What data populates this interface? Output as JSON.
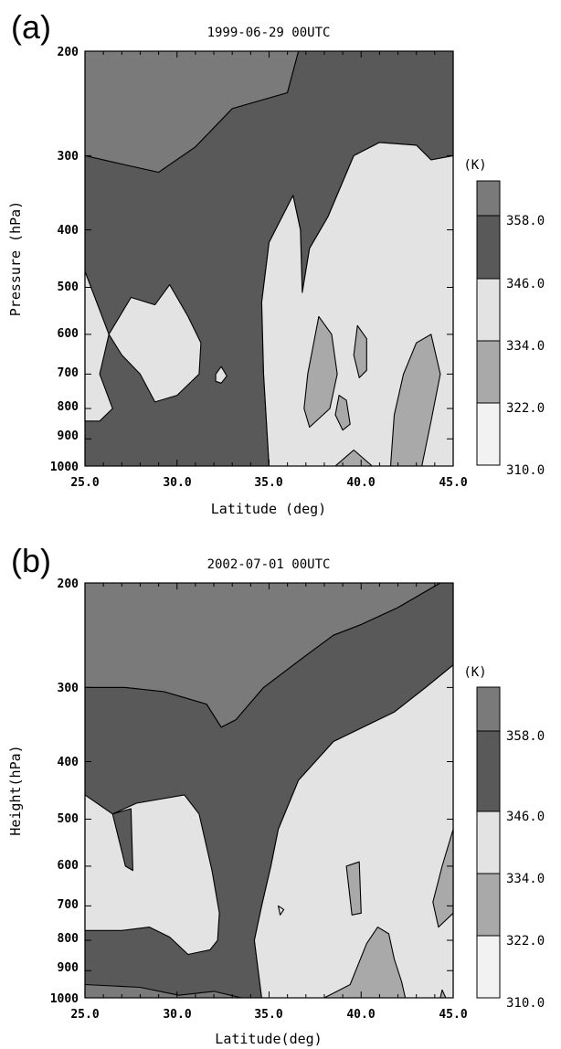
{
  "panels": [
    {
      "panel_label": "(a)",
      "title": "1999-06-29 00UTC",
      "xlabel": "Latitude (deg)",
      "ylabel": "Pressure (hPa)",
      "colorbar_unit": "(K)"
    },
    {
      "panel_label": "(b)",
      "title": "2002-07-01 00UTC",
      "xlabel": "Latitude(deg)",
      "ylabel": "Height(hPa)",
      "colorbar_unit": "(K)"
    }
  ],
  "colors": {
    "lt310": "#f2f2f2",
    "b322": "#a9a9a9",
    "b334": "#e3e3e3",
    "b346": "#595959",
    "gt358": "#7a7a7a"
  },
  "chart_data": [
    {
      "type": "heatmap",
      "title": "1999-06-29 00UTC",
      "xlabel": "Latitude (deg)",
      "ylabel": "Pressure (hPa)",
      "xlim": [
        25.0,
        45.0
      ],
      "ylim": [
        1000,
        200
      ],
      "x_ticks": [
        "25.0",
        "30.0",
        "35.0",
        "40.0",
        "45.0"
      ],
      "y_ticks": [
        "200",
        "300",
        "400",
        "500",
        "600",
        "700",
        "800",
        "900",
        "1000"
      ],
      "colorbar": {
        "unit": "(K)",
        "levels": [
          "310.0",
          "322.0",
          "334.0",
          "346.0",
          "358.0"
        ]
      },
      "regions": [
        {
          "level": "gt358",
          "points": [
            [
              25,
              200
            ],
            [
              36.6,
              200
            ],
            [
              36,
              235
            ],
            [
              33,
              250
            ],
            [
              31,
              290
            ],
            [
              29,
              320
            ],
            [
              27,
              310
            ],
            [
              25,
              300
            ]
          ]
        },
        {
          "level": "b346",
          "points": [
            [
              36.6,
              200
            ],
            [
              45,
              200
            ],
            [
              45,
              300
            ],
            [
              43.8,
              305
            ],
            [
              43,
              288
            ],
            [
              41,
              285
            ],
            [
              39.6,
              300
            ],
            [
              38.2,
              380
            ],
            [
              37.2,
              430
            ],
            [
              36.8,
              510
            ],
            [
              36.7,
              400
            ],
            [
              36.3,
              350
            ],
            [
              35,
              420
            ],
            [
              34.6,
              530
            ],
            [
              34.7,
              700
            ],
            [
              35,
              1000
            ],
            [
              25,
              1000
            ],
            [
              25,
              300
            ],
            [
              27,
              310
            ],
            [
              29,
              320
            ],
            [
              31,
              290
            ],
            [
              33,
              250
            ],
            [
              36,
              235
            ]
          ]
        },
        {
          "level": "b334",
          "points": [
            [
              45,
              300
            ],
            [
              45,
              1000
            ],
            [
              35,
              1000
            ],
            [
              34.7,
              700
            ],
            [
              34.6,
              530
            ],
            [
              35,
              420
            ],
            [
              36.3,
              350
            ],
            [
              36.7,
              400
            ],
            [
              36.8,
              510
            ],
            [
              37.2,
              430
            ],
            [
              38.2,
              380
            ],
            [
              39.6,
              300
            ],
            [
              41,
              285
            ],
            [
              43,
              288
            ],
            [
              43.8,
              305
            ]
          ]
        },
        {
          "level": "b334",
          "points": [
            [
              25,
              470
            ],
            [
              26.3,
              600
            ],
            [
              25.8,
              700
            ],
            [
              26.5,
              800
            ],
            [
              25.8,
              840
            ],
            [
              25,
              840
            ]
          ]
        },
        {
          "level": "b334",
          "points": [
            [
              26.3,
              600
            ],
            [
              27.5,
              520
            ],
            [
              28.8,
              535
            ],
            [
              29.6,
              495
            ],
            [
              30.6,
              560
            ],
            [
              31.3,
              620
            ],
            [
              31.2,
              700
            ],
            [
              30,
              760
            ],
            [
              28.8,
              780
            ],
            [
              28,
              700
            ],
            [
              27,
              650
            ]
          ]
        },
        {
          "level": "b334",
          "points": [
            [
              32.1,
              700
            ],
            [
              32.4,
              680
            ],
            [
              32.7,
              705
            ],
            [
              32.4,
              725
            ],
            [
              32.1,
              720
            ]
          ]
        },
        {
          "level": "b322",
          "points": [
            [
              37.7,
              560
            ],
            [
              38.4,
              600
            ],
            [
              38.7,
              700
            ],
            [
              38.3,
              800
            ],
            [
              37.2,
              860
            ],
            [
              36.9,
              800
            ],
            [
              37.1,
              700
            ]
          ]
        },
        {
          "level": "b322",
          "points": [
            [
              39.8,
              580
            ],
            [
              40.3,
              610
            ],
            [
              40.3,
              690
            ],
            [
              39.9,
              710
            ],
            [
              39.6,
              650
            ]
          ]
        },
        {
          "level": "b322",
          "points": [
            [
              38.8,
              760
            ],
            [
              39.2,
              775
            ],
            [
              39.4,
              850
            ],
            [
              39,
              870
            ],
            [
              38.6,
              820
            ]
          ]
        },
        {
          "level": "b322",
          "points": [
            [
              38.6,
              1000
            ],
            [
              39.6,
              940
            ],
            [
              40.6,
              1000
            ]
          ]
        },
        {
          "level": "b322",
          "points": [
            [
              41.6,
              1000
            ],
            [
              41.8,
              820
            ],
            [
              42.3,
              700
            ],
            [
              43,
              620
            ],
            [
              43.8,
              600
            ],
            [
              44.3,
              700
            ],
            [
              43.8,
              840
            ],
            [
              43.3,
              1000
            ]
          ]
        },
        {
          "level": "b346",
          "points": [
            [
              45,
              540
            ],
            [
              45,
              1000
            ]
          ]
        }
      ]
    },
    {
      "type": "heatmap",
      "title": "2002-07-01 00UTC",
      "xlabel": "Latitude(deg)",
      "ylabel": "Height(hPa)",
      "xlim": [
        25.0,
        45.0
      ],
      "ylim": [
        1000,
        200
      ],
      "x_ticks": [
        "25.0",
        "30.0",
        "35.0",
        "40.0",
        "45.0"
      ],
      "y_ticks": [
        "200",
        "300",
        "400",
        "500",
        "600",
        "700",
        "800",
        "900",
        "1000"
      ],
      "colorbar": {
        "unit": "(K)",
        "levels": [
          "310.0",
          "322.0",
          "334.0",
          "346.0",
          "358.0"
        ]
      },
      "regions": [
        {
          "level": "gt358",
          "points": [
            [
              25,
              200
            ],
            [
              44.3,
              200
            ],
            [
              42,
              220
            ],
            [
              40,
              235
            ],
            [
              38.5,
              245
            ],
            [
              37,
              265
            ],
            [
              34.7,
              300
            ],
            [
              33.2,
              340
            ],
            [
              32.4,
              350
            ],
            [
              31.6,
              320
            ],
            [
              29.3,
              305
            ],
            [
              27.2,
              300
            ],
            [
              25.5,
              300
            ],
            [
              25,
              300
            ]
          ]
        },
        {
          "level": "b346",
          "points": [
            [
              44.3,
              200
            ],
            [
              45,
              200
            ],
            [
              45,
              275
            ],
            [
              43.5,
              300
            ],
            [
              41.8,
              330
            ],
            [
              38.5,
              370
            ],
            [
              36.6,
              430
            ],
            [
              35.5,
              520
            ],
            [
              35.1,
              600
            ],
            [
              34.6,
              700
            ],
            [
              34.2,
              800
            ],
            [
              34.6,
              1000
            ],
            [
              25,
              1000
            ],
            [
              25,
              300
            ],
            [
              25.5,
              300
            ],
            [
              27.2,
              300
            ],
            [
              29.3,
              305
            ],
            [
              31.6,
              320
            ],
            [
              32.4,
              350
            ],
            [
              33.2,
              340
            ],
            [
              34.7,
              300
            ],
            [
              37,
              265
            ],
            [
              38.5,
              245
            ],
            [
              40,
              235
            ],
            [
              42,
              220
            ]
          ]
        },
        {
          "level": "b334",
          "points": [
            [
              45,
              275
            ],
            [
              45,
              1000
            ],
            [
              34.6,
              1000
            ],
            [
              34.2,
              800
            ],
            [
              34.6,
              700
            ],
            [
              35.1,
              600
            ],
            [
              35.5,
              520
            ],
            [
              36.6,
              430
            ],
            [
              38.5,
              370
            ],
            [
              41.8,
              330
            ],
            [
              43.5,
              300
            ]
          ]
        },
        {
          "level": "b334",
          "points": [
            [
              25,
              455
            ],
            [
              26.5,
              490
            ],
            [
              27.8,
              470
            ],
            [
              30.4,
              455
            ],
            [
              31.2,
              490
            ],
            [
              31.9,
              610
            ],
            [
              32.3,
              720
            ],
            [
              32.2,
              800
            ],
            [
              31.8,
              830
            ],
            [
              30.6,
              845
            ],
            [
              29.6,
              790
            ],
            [
              28.5,
              760
            ],
            [
              27,
              770
            ],
            [
              25,
              770
            ]
          ]
        },
        {
          "level": "b346",
          "points": [
            [
              26.5,
              490
            ],
            [
              27.2,
              600
            ],
            [
              27.6,
              610
            ],
            [
              27.5,
              480
            ]
          ]
        },
        {
          "level": "b334",
          "points": [
            [
              35.5,
              700
            ],
            [
              35.8,
              710
            ],
            [
              35.6,
              725
            ]
          ]
        },
        {
          "level": "b322",
          "points": [
            [
              39.2,
              600
            ],
            [
              39.9,
              590
            ],
            [
              40,
              720
            ],
            [
              39.5,
              725
            ]
          ]
        },
        {
          "level": "b322",
          "points": [
            [
              38,
              1000
            ],
            [
              39.4,
              950
            ],
            [
              40.3,
              810
            ],
            [
              40.9,
              760
            ],
            [
              41.5,
              780
            ],
            [
              41.8,
              860
            ],
            [
              42.2,
              940
            ],
            [
              42.4,
              1000
            ]
          ]
        },
        {
          "level": "b322",
          "points": [
            [
              44.2,
              760
            ],
            [
              45,
              720
            ],
            [
              45,
              520
            ],
            [
              44.4,
              600
            ],
            [
              43.9,
              690
            ]
          ]
        },
        {
          "level": "b322",
          "points": [
            [
              44.3,
              1000
            ],
            [
              44.4,
              970
            ],
            [
              44.6,
              1000
            ]
          ]
        },
        {
          "level": "gt358",
          "points": [
            [
              25,
              1000
            ],
            [
              25,
              950
            ],
            [
              28,
              960
            ],
            [
              30.1,
              990
            ],
            [
              32,
              975
            ],
            [
              33.5,
              1000
            ]
          ]
        }
      ]
    }
  ]
}
